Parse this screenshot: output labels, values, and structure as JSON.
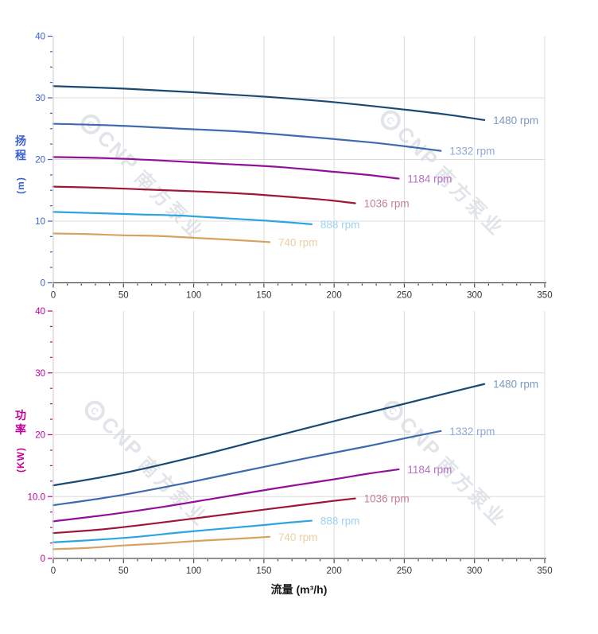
{
  "watermark": {
    "logo_text": "CNP",
    "text": "南方泵业"
  },
  "colors": {
    "grid": "#dcdcdc",
    "y_axis_line": "#c8c8c8",
    "x_axis_line": "#4d4d4d",
    "x_tick_label": "#333333",
    "head_axis": "#3a5fd0",
    "power_axis": "#c00096"
  },
  "chart_data": [
    {
      "type": "line",
      "panel": "head",
      "ylabel": "扬程",
      "ylabel_unit": "(m)",
      "axis_color": "#3a5fd0",
      "xlim": [
        0,
        350
      ],
      "ylim": [
        0,
        40
      ],
      "x_major": 50,
      "x_minor": 10,
      "y_major": 10,
      "y_minor": 2.5,
      "x_tick_labels": [
        "0",
        "50",
        "100",
        "150",
        "200",
        "250",
        "300",
        "350"
      ],
      "y_tick_labels": [
        "0",
        "10",
        "20",
        "30",
        "40"
      ],
      "grid": true,
      "legend_position": "end-of-line",
      "series": [
        {
          "name": "1480 rpm",
          "color": "#1a4a73",
          "label_color": "#7b9ac1",
          "points": [
            [
              0,
              31.9
            ],
            [
              50,
              31.5
            ],
            [
              100,
              30.9
            ],
            [
              150,
              30.2
            ],
            [
              200,
              29.3
            ],
            [
              250,
              28.1
            ],
            [
              280,
              27.3
            ],
            [
              307,
              26.4
            ]
          ]
        },
        {
          "name": "1332 rpm",
          "color": "#3f6ab0",
          "label_color": "#8fa9d6",
          "points": [
            [
              0,
              25.8
            ],
            [
              45,
              25.5
            ],
            [
              90,
              25.0
            ],
            [
              135,
              24.5
            ],
            [
              180,
              23.7
            ],
            [
              225,
              22.8
            ],
            [
              252,
              22.1
            ],
            [
              276,
              21.4
            ]
          ]
        },
        {
          "name": "1184 rpm",
          "color": "#930f9a",
          "label_color": "#b871c4",
          "points": [
            [
              0,
              20.4
            ],
            [
              40,
              20.2
            ],
            [
              80,
              19.8
            ],
            [
              120,
              19.3
            ],
            [
              160,
              18.8
            ],
            [
              200,
              18.0
            ],
            [
              224,
              17.5
            ],
            [
              246,
              16.9
            ]
          ]
        },
        {
          "name": "1036 rpm",
          "color": "#9e1638",
          "label_color": "#c47e97",
          "points": [
            [
              0,
              15.6
            ],
            [
              35,
              15.4
            ],
            [
              70,
              15.1
            ],
            [
              105,
              14.8
            ],
            [
              140,
              14.4
            ],
            [
              175,
              13.8
            ],
            [
              196,
              13.4
            ],
            [
              215,
              12.9
            ]
          ]
        },
        {
          "name": "888 rpm",
          "color": "#2aa5e1",
          "label_color": "#9ed2f1",
          "points": [
            [
              0,
              11.5
            ],
            [
              30,
              11.3
            ],
            [
              60,
              11.1
            ],
            [
              90,
              10.9
            ],
            [
              120,
              10.5
            ],
            [
              150,
              10.1
            ],
            [
              168,
              9.8
            ],
            [
              184,
              9.5
            ]
          ]
        },
        {
          "name": "740 rpm",
          "color": "#d7a260",
          "label_color": "#e9cfa4",
          "points": [
            [
              0,
              8.0
            ],
            [
              25,
              7.9
            ],
            [
              50,
              7.7
            ],
            [
              75,
              7.6
            ],
            [
              100,
              7.3
            ],
            [
              125,
              7.0
            ],
            [
              140,
              6.8
            ],
            [
              154,
              6.6
            ]
          ]
        }
      ]
    },
    {
      "type": "line",
      "panel": "power",
      "ylabel": "功率",
      "ylabel_unit": "(KW)",
      "xlabel": "流量 (m³/h)",
      "axis_color": "#c00096",
      "xlim": [
        0,
        350
      ],
      "ylim": [
        0,
        40
      ],
      "x_major": 50,
      "x_minor": 10,
      "y_major": 10,
      "y_minor": 2.5,
      "x_tick_labels": [
        "0",
        "50",
        "100",
        "150",
        "200",
        "250",
        "300",
        "350"
      ],
      "y_tick_labels": [
        "0",
        "10.0",
        "20",
        "30",
        "40"
      ],
      "grid": true,
      "legend_position": "end-of-line",
      "series": [
        {
          "name": "1480 rpm",
          "color": "#1a4a73",
          "label_color": "#7b9ac1",
          "points": [
            [
              0,
              11.8
            ],
            [
              50,
              13.8
            ],
            [
              100,
              16.4
            ],
            [
              150,
              19.3
            ],
            [
              200,
              22.2
            ],
            [
              250,
              25.0
            ],
            [
              280,
              26.7
            ],
            [
              307,
              28.2
            ]
          ]
        },
        {
          "name": "1332 rpm",
          "color": "#3f6ab0",
          "label_color": "#8fa9d6",
          "points": [
            [
              0,
              8.6
            ],
            [
              45,
              10.1
            ],
            [
              90,
              12.0
            ],
            [
              135,
              14.1
            ],
            [
              180,
              16.2
            ],
            [
              225,
              18.2
            ],
            [
              252,
              19.5
            ],
            [
              276,
              20.6
            ]
          ]
        },
        {
          "name": "1184 rpm",
          "color": "#930f9a",
          "label_color": "#b871c4",
          "points": [
            [
              0,
              6.0
            ],
            [
              40,
              7.1
            ],
            [
              80,
              8.4
            ],
            [
              120,
              9.9
            ],
            [
              160,
              11.4
            ],
            [
              200,
              12.8
            ],
            [
              224,
              13.7
            ],
            [
              246,
              14.4
            ]
          ]
        },
        {
          "name": "1036 rpm",
          "color": "#9e1638",
          "label_color": "#c47e97",
          "points": [
            [
              0,
              4.1
            ],
            [
              35,
              4.7
            ],
            [
              70,
              5.6
            ],
            [
              105,
              6.6
            ],
            [
              140,
              7.6
            ],
            [
              175,
              8.6
            ],
            [
              196,
              9.2
            ],
            [
              215,
              9.7
            ]
          ]
        },
        {
          "name": "888 rpm",
          "color": "#2aa5e1",
          "label_color": "#9ed2f1",
          "points": [
            [
              0,
              2.6
            ],
            [
              30,
              3.0
            ],
            [
              60,
              3.5
            ],
            [
              90,
              4.2
            ],
            [
              120,
              4.8
            ],
            [
              150,
              5.4
            ],
            [
              168,
              5.8
            ],
            [
              184,
              6.1
            ]
          ]
        },
        {
          "name": "740 rpm",
          "color": "#d7a260",
          "label_color": "#e9cfa4",
          "points": [
            [
              0,
              1.5
            ],
            [
              25,
              1.7
            ],
            [
              50,
              2.1
            ],
            [
              75,
              2.4
            ],
            [
              100,
              2.8
            ],
            [
              125,
              3.1
            ],
            [
              140,
              3.3
            ],
            [
              154,
              3.5
            ]
          ]
        }
      ]
    }
  ]
}
